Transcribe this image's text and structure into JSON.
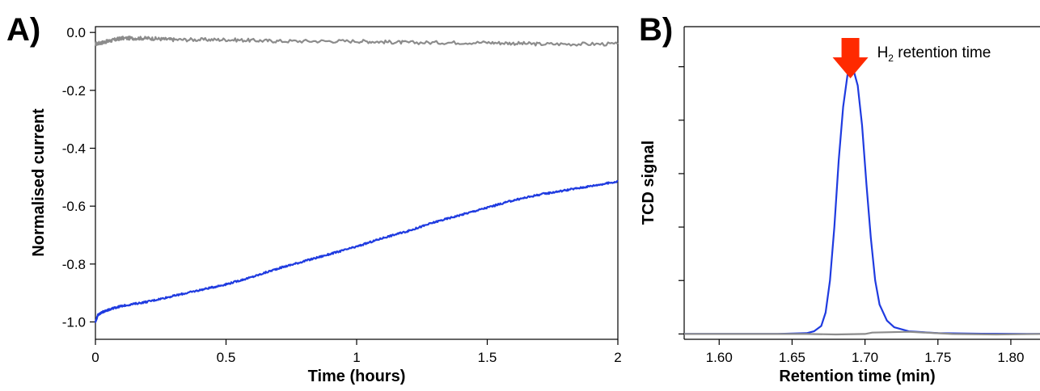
{
  "chart_data": [
    {
      "panel": "A)",
      "type": "line",
      "xlabel": "Time (hours)",
      "ylabel": "Normalised current",
      "xlim": [
        0,
        2
      ],
      "ylim": [
        -1.06,
        0.02
      ],
      "xticks": [
        0,
        0.5,
        1,
        1.5,
        2
      ],
      "xtick_labels": [
        "0",
        "0.5",
        "1",
        "1.5",
        "2"
      ],
      "yticks": [
        0.0,
        -0.2,
        -0.4,
        -0.6,
        -0.8,
        -1.0
      ],
      "ytick_labels": [
        "0.0",
        "-0.2",
        "-0.4",
        "-0.6",
        "-0.8",
        "-1.0"
      ],
      "grid": false,
      "series": [
        {
          "color": "#8c8c8c",
          "x": [
            0,
            0.05,
            0.1,
            0.2,
            0.3,
            0.5,
            0.7,
            1.0,
            1.2,
            1.5,
            1.7,
            2.0
          ],
          "y": [
            -0.04,
            -0.03,
            -0.02,
            -0.02,
            -0.025,
            -0.025,
            -0.03,
            -0.03,
            -0.035,
            -0.035,
            -0.04,
            -0.04
          ]
        },
        {
          "color": "#1f3be0",
          "x": [
            0,
            0.01,
            0.03,
            0.06,
            0.1,
            0.2,
            0.3,
            0.4,
            0.5,
            0.6,
            0.7,
            0.8,
            0.9,
            1.0,
            1.1,
            1.2,
            1.3,
            1.4,
            1.5,
            1.6,
            1.7,
            1.8,
            1.9,
            2.0
          ],
          "y": [
            -1.0,
            -0.975,
            -0.965,
            -0.955,
            -0.945,
            -0.93,
            -0.91,
            -0.89,
            -0.87,
            -0.845,
            -0.815,
            -0.79,
            -0.765,
            -0.74,
            -0.71,
            -0.685,
            -0.655,
            -0.63,
            -0.605,
            -0.58,
            -0.56,
            -0.545,
            -0.53,
            -0.515
          ]
        }
      ]
    },
    {
      "panel": "B)",
      "type": "line",
      "xlabel": "Retention time (min)",
      "ylabel": "TCD signal",
      "xlim": [
        1.576,
        1.82
      ],
      "ylim": [
        -0.02,
        1.15
      ],
      "xticks": [
        1.6,
        1.65,
        1.7,
        1.75,
        1.8
      ],
      "xtick_labels": [
        "1.60",
        "1.65",
        "1.70",
        "1.75",
        "1.80"
      ],
      "yticks": [
        0,
        0.2,
        0.4,
        0.6,
        0.8,
        1.0
      ],
      "ytick_labels": [
        "",
        "",
        "",
        "",
        "",
        ""
      ],
      "grid": false,
      "annotation": {
        "text": "H",
        "subscript": "2",
        "suffix": " retention time",
        "x": 1.69,
        "arrow_color": "#ff2a00"
      },
      "series": [
        {
          "color": "#1f3be0",
          "x": [
            1.576,
            1.6,
            1.64,
            1.66,
            1.665,
            1.67,
            1.673,
            1.676,
            1.679,
            1.682,
            1.685,
            1.688,
            1.69,
            1.692,
            1.695,
            1.698,
            1.701,
            1.704,
            1.707,
            1.71,
            1.715,
            1.72,
            1.73,
            1.75,
            1.78,
            1.82
          ],
          "y": [
            0.0,
            0.0,
            0.0,
            0.003,
            0.01,
            0.03,
            0.08,
            0.2,
            0.4,
            0.65,
            0.85,
            0.97,
            1.0,
            0.99,
            0.93,
            0.78,
            0.56,
            0.36,
            0.2,
            0.11,
            0.05,
            0.025,
            0.01,
            0.003,
            0.001,
            0.0
          ]
        },
        {
          "color": "#8c8c8c",
          "x": [
            1.576,
            1.66,
            1.68,
            1.7,
            1.705,
            1.73,
            1.76,
            1.79,
            1.82
          ],
          "y": [
            0.0,
            0.0,
            -0.002,
            0.0,
            0.005,
            0.008,
            0.0,
            -0.002,
            0.0
          ]
        }
      ]
    }
  ]
}
